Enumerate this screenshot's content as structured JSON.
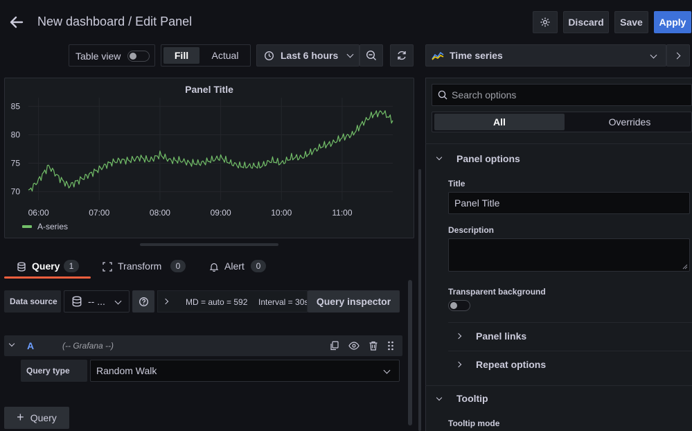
{
  "header": {
    "title": "New dashboard / Edit Panel",
    "discard_label": "Discard",
    "save_label": "Save",
    "apply_label": "Apply"
  },
  "toolbar": {
    "table_view_label": "Table view",
    "fill_label": "Fill",
    "actual_label": "Actual",
    "time_range_label": "Last 6 hours",
    "viz_label": "Time series"
  },
  "panel": {
    "title": "Panel Title",
    "legend_label": "A-series",
    "series_color": "#73bf69"
  },
  "chart_data": {
    "type": "line",
    "x_ticks": [
      "06:00",
      "07:00",
      "08:00",
      "09:00",
      "10:00",
      "11:00"
    ],
    "y_ticks": [
      70,
      75,
      80,
      85
    ],
    "ylim": [
      68.5,
      86.5
    ],
    "xlim": [
      "05:50",
      "11:50"
    ],
    "series": [
      {
        "name": "A-series",
        "x": [
          "05:50",
          "06:00",
          "06:10",
          "06:20",
          "06:30",
          "06:40",
          "06:50",
          "07:00",
          "07:10",
          "07:20",
          "07:30",
          "07:40",
          "07:50",
          "08:00",
          "08:10",
          "08:20",
          "08:30",
          "08:40",
          "08:50",
          "09:00",
          "09:10",
          "09:20",
          "09:30",
          "09:40",
          "09:50",
          "10:00",
          "10:10",
          "10:20",
          "10:30",
          "10:40",
          "10:50",
          "11:00",
          "11:10",
          "11:20",
          "11:30",
          "11:40",
          "11:50"
        ],
        "y": [
          70,
          72,
          74.5,
          72.5,
          71,
          72,
          73,
          74,
          75,
          75.5,
          75.5,
          76,
          75.5,
          76.5,
          75.5,
          75.5,
          75,
          75,
          75.5,
          76,
          75,
          74.5,
          74.5,
          74.5,
          75.5,
          75,
          76,
          76,
          77,
          78,
          78.5,
          79.5,
          80,
          82,
          83.5,
          84,
          82.5
        ]
      }
    ]
  },
  "query_tabs": [
    {
      "label": "Query",
      "count": "1"
    },
    {
      "label": "Transform",
      "count": "0"
    },
    {
      "label": "Alert",
      "count": "0"
    }
  ],
  "query_row": {
    "data_source_label": "Data source",
    "data_source_value": "-- ...",
    "meta_md": "MD = auto = 592",
    "meta_interval": "Interval = 30s",
    "inspector_label": "Query inspector",
    "query_letter": "A",
    "query_source": "(-- Grafana --)",
    "query_type_label": "Query type",
    "query_type_value": "Random Walk",
    "add_query_label": "Query"
  },
  "options": {
    "search_placeholder": "Search options",
    "tab_all": "All",
    "tab_overrides": "Overrides",
    "panel_options_title": "Panel options",
    "title_label": "Title",
    "title_value": "Panel Title",
    "description_label": "Description",
    "transparent_label": "Transparent background",
    "panel_links_label": "Panel links",
    "repeat_options_label": "Repeat options",
    "tooltip_title": "Tooltip",
    "tooltip_mode_label": "Tooltip mode"
  }
}
